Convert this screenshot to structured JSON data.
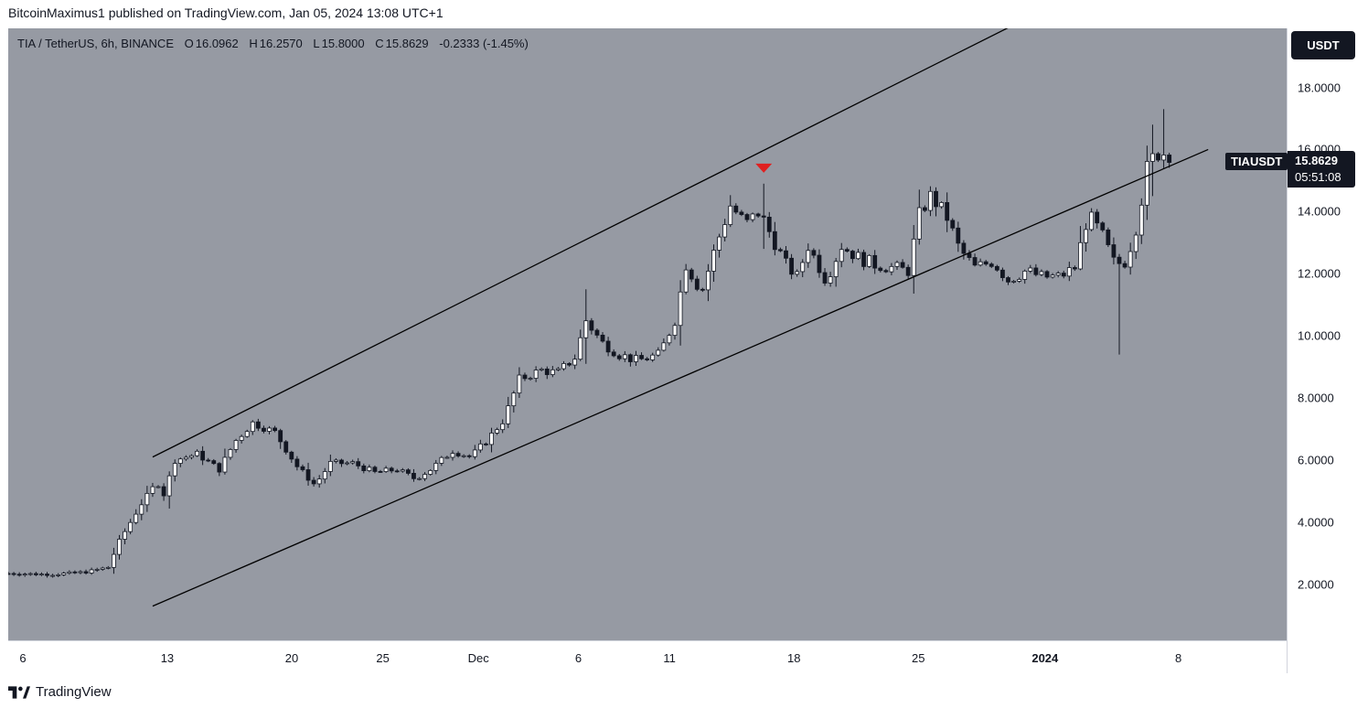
{
  "publish_line": "BitcoinMaximus1 published on TradingView.com, Jan 05, 2024 13:08 UTC+1",
  "legend": {
    "symbol": "TIA / TetherUS, 6h, BINANCE",
    "o_key": "O",
    "o_val": "16.0962",
    "h_key": "H",
    "h_val": "16.2570",
    "l_key": "L",
    "l_val": "15.8000",
    "c_key": "C",
    "c_val": "15.8629",
    "change": "-0.2333 (-1.45%)"
  },
  "currency": "USDT",
  "symbol_tag": "TIAUSDT",
  "price_tag": {
    "price": "15.8629",
    "countdown": "05:51:08"
  },
  "footer_brand": "TradingView",
  "colors": {
    "background": "#969aa3",
    "up_candle": "#ffffff",
    "down_candle": "#131722",
    "channel_line": "#000000",
    "marker": "#e02020"
  },
  "chart_data": {
    "type": "candlestick",
    "title": "TIA / TetherUS, 6h, BINANCE",
    "ylim": [
      0.2,
      19.9
    ],
    "y_ticks": [
      "2.0000",
      "4.0000",
      "6.0000",
      "8.0000",
      "10.0000",
      "12.0000",
      "14.0000",
      "16.0000",
      "18.0000"
    ],
    "x_ticks": [
      "6",
      "13",
      "20",
      "25",
      "Dec",
      "6",
      "11",
      "18",
      "25",
      "2024",
      "8"
    ],
    "close_path": [
      {
        "x": 0.0,
        "y": 2.35
      },
      {
        "x": 2.0,
        "y": 2.32
      },
      {
        "x": 3.5,
        "y": 2.4
      },
      {
        "x": 4.5,
        "y": 2.55
      },
      {
        "x": 5.0,
        "y": 3.4
      },
      {
        "x": 5.5,
        "y": 4.0
      },
      {
        "x": 6.0,
        "y": 4.6
      },
      {
        "x": 6.7,
        "y": 5.3
      },
      {
        "x": 7.0,
        "y": 4.9
      },
      {
        "x": 7.5,
        "y": 6.0
      },
      {
        "x": 8.5,
        "y": 6.2
      },
      {
        "x": 9.5,
        "y": 5.7
      },
      {
        "x": 10.2,
        "y": 6.6
      },
      {
        "x": 11.0,
        "y": 7.2
      },
      {
        "x": 12.0,
        "y": 6.9
      },
      {
        "x": 13.0,
        "y": 5.8
      },
      {
        "x": 13.8,
        "y": 5.2
      },
      {
        "x": 14.5,
        "y": 5.9
      },
      {
        "x": 15.5,
        "y": 5.9
      },
      {
        "x": 16.5,
        "y": 5.6
      },
      {
        "x": 17.5,
        "y": 5.7
      },
      {
        "x": 18.3,
        "y": 5.4
      },
      {
        "x": 19.0,
        "y": 5.7
      },
      {
        "x": 20.0,
        "y": 6.3
      },
      {
        "x": 20.8,
        "y": 6.1
      },
      {
        "x": 21.5,
        "y": 6.6
      },
      {
        "x": 22.3,
        "y": 7.3
      },
      {
        "x": 23.0,
        "y": 8.6
      },
      {
        "x": 24.0,
        "y": 8.9
      },
      {
        "x": 24.7,
        "y": 8.8
      },
      {
        "x": 25.5,
        "y": 9.3
      },
      {
        "x": 26.0,
        "y": 10.5
      },
      {
        "x": 26.7,
        "y": 9.8
      },
      {
        "x": 27.5,
        "y": 9.4
      },
      {
        "x": 28.3,
        "y": 9.2
      },
      {
        "x": 29.3,
        "y": 9.4
      },
      {
        "x": 30.0,
        "y": 10.5
      },
      {
        "x": 30.5,
        "y": 12.3
      },
      {
        "x": 31.2,
        "y": 11.4
      },
      {
        "x": 31.8,
        "y": 12.8
      },
      {
        "x": 32.5,
        "y": 14.2
      },
      {
        "x": 33.2,
        "y": 13.6
      },
      {
        "x": 33.8,
        "y": 14.0
      },
      {
        "x": 34.5,
        "y": 13.0
      },
      {
        "x": 35.0,
        "y": 12.3
      },
      {
        "x": 35.5,
        "y": 11.9
      },
      {
        "x": 36.0,
        "y": 12.9
      },
      {
        "x": 36.8,
        "y": 11.8
      },
      {
        "x": 37.5,
        "y": 12.9
      },
      {
        "x": 38.3,
        "y": 12.5
      },
      {
        "x": 39.0,
        "y": 12.3
      },
      {
        "x": 39.8,
        "y": 12.2
      },
      {
        "x": 40.5,
        "y": 12.1
      },
      {
        "x": 41.0,
        "y": 13.9
      },
      {
        "x": 41.5,
        "y": 14.5
      },
      {
        "x": 42.2,
        "y": 13.9
      },
      {
        "x": 42.8,
        "y": 12.8
      },
      {
        "x": 43.5,
        "y": 12.2
      },
      {
        "x": 44.3,
        "y": 12.4
      },
      {
        "x": 45.0,
        "y": 11.8
      },
      {
        "x": 45.8,
        "y": 12.1
      },
      {
        "x": 46.5,
        "y": 11.9
      },
      {
        "x": 47.3,
        "y": 11.9
      },
      {
        "x": 48.0,
        "y": 12.2
      },
      {
        "x": 48.6,
        "y": 13.9
      },
      {
        "x": 49.2,
        "y": 13.3
      },
      {
        "x": 49.8,
        "y": 12.3
      },
      {
        "x": 50.3,
        "y": 12.4
      },
      {
        "x": 50.8,
        "y": 13.6
      },
      {
        "x": 51.3,
        "y": 15.6
      },
      {
        "x": 51.8,
        "y": 15.9
      },
      {
        "x": 52.2,
        "y": 15.86
      }
    ],
    "wick_extremes": [
      {
        "x": 26.0,
        "high": 11.5,
        "low": 9.1
      },
      {
        "x": 34.0,
        "high": 14.9,
        "low": 12.8
      },
      {
        "x": 50.0,
        "high": 12.4,
        "low": 9.4
      },
      {
        "x": 51.5,
        "high": 16.8,
        "low": 14.5
      },
      {
        "x": 52.0,
        "high": 17.3,
        "low": 15.4
      }
    ],
    "channel_lines": [
      {
        "name": "",
        "x1": 6.5,
        "y1": 6.1,
        "x2": 45.5,
        "y2": 20.1
      },
      {
        "name": "",
        "x1": 6.5,
        "y1": 1.3,
        "x2": 54.0,
        "y2": 16.0
      }
    ],
    "marker": {
      "x": 34.0,
      "y": 15.4,
      "shape": "triangle-down"
    }
  }
}
